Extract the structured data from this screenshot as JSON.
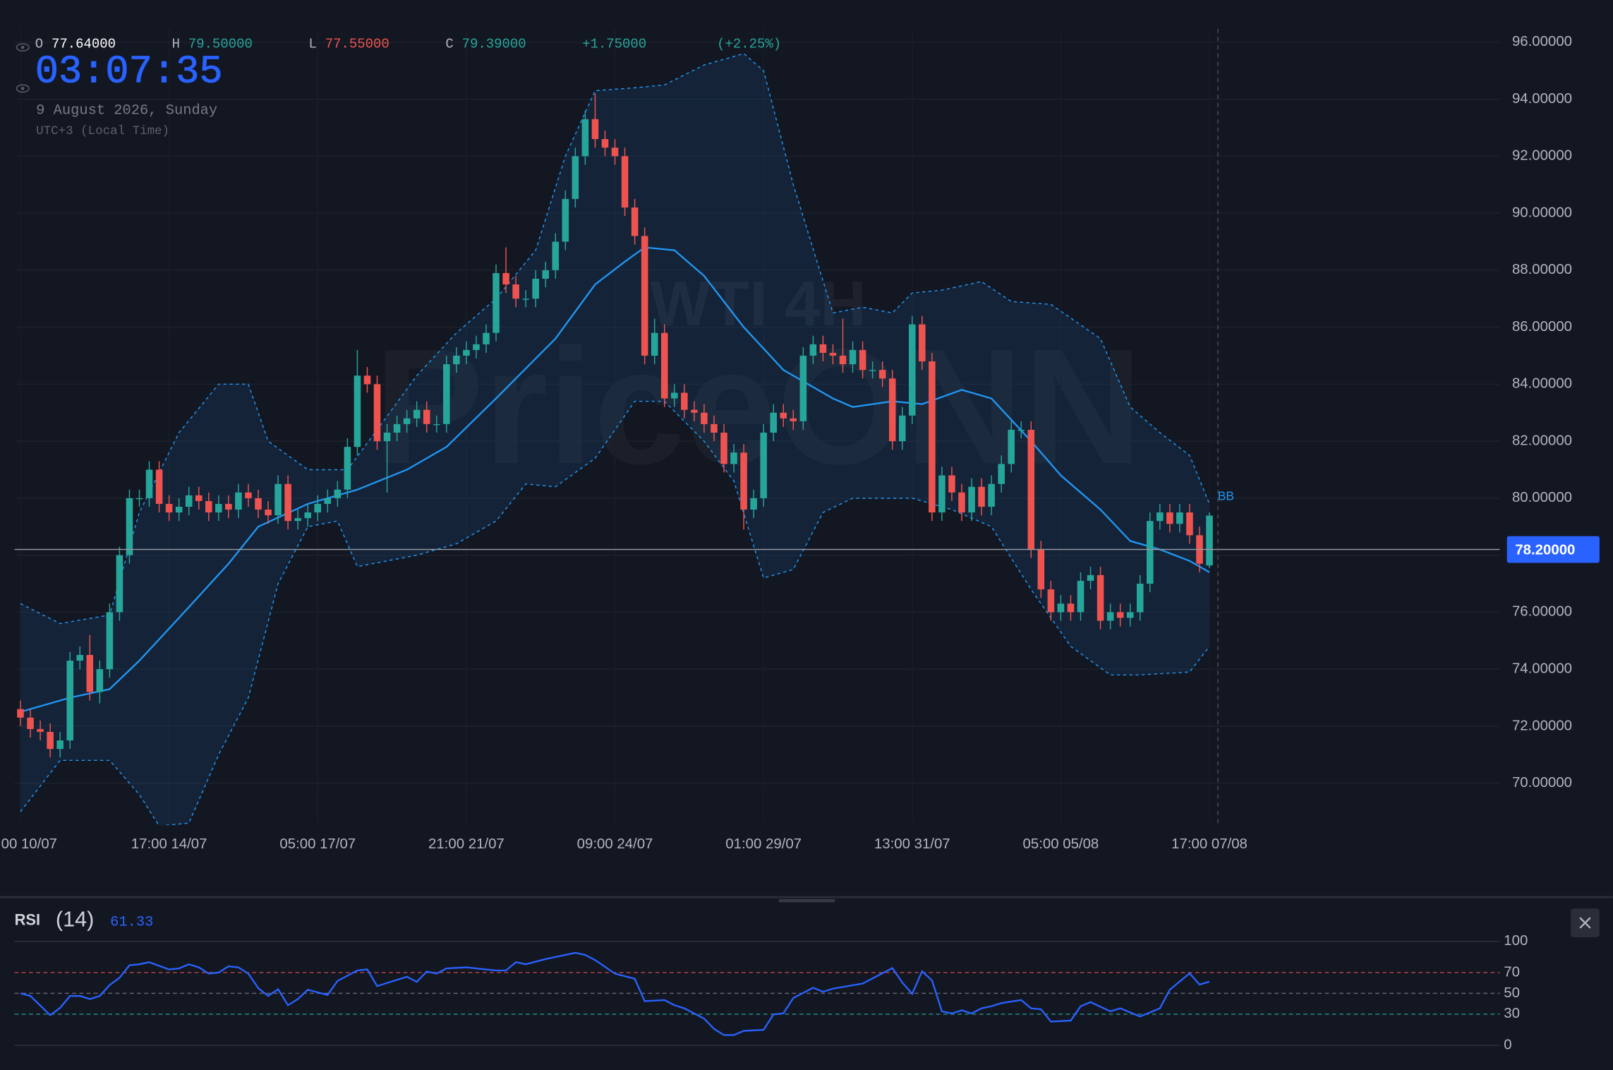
{
  "header": {
    "ohlc": [
      {
        "label": "O",
        "value": "77.64000"
      },
      {
        "label": "H",
        "value": "79.50000"
      },
      {
        "label": "L",
        "value": "77.55000"
      },
      {
        "label": "C",
        "value": "79.39000"
      }
    ],
    "change": "+1.75000",
    "change_pct": "(+2.25%)",
    "clock": "03:07:35",
    "date": "9 August 2026, Sunday",
    "timezone": "UTC+3 (Local Time)"
  },
  "watermark": {
    "symbol": "WTI 4H",
    "brand": "PriceONN"
  },
  "chart_data": [
    {
      "type": "candlestick",
      "up_color": "#26a69a",
      "down_color": "#ef5350",
      "grid": true,
      "open": [
        72.6,
        72.3,
        71.9,
        71.8,
        71.2,
        71.5,
        74.3,
        74.5,
        73.2,
        74.0,
        76.0,
        78.0,
        80.0,
        80.0,
        81.0,
        79.8,
        79.5,
        79.7,
        80.1,
        79.9,
        79.5,
        79.8,
        79.6,
        80.2,
        80.0,
        79.6,
        79.4,
        80.5,
        79.2,
        79.3,
        79.5,
        79.8,
        80.0,
        80.3,
        81.8,
        84.3,
        84.0,
        82.0,
        82.3,
        82.6,
        82.8,
        83.1,
        82.6,
        82.6,
        84.7,
        85.0,
        85.2,
        85.4,
        85.8,
        87.9,
        87.5,
        87.0,
        87.0,
        87.7,
        88.0,
        89.0,
        90.5,
        92.0,
        93.3,
        92.6,
        92.3,
        92.0,
        90.2,
        89.2,
        85.0,
        85.8,
        83.5,
        83.7,
        83.1,
        83.0,
        82.6,
        82.3,
        81.2,
        81.6,
        79.6,
        80.0,
        82.3,
        83.0,
        82.8,
        82.7,
        85.0,
        85.4,
        85.1,
        85.0,
        84.7,
        85.2,
        84.5,
        84.5,
        84.2,
        82.0,
        82.9,
        86.1,
        84.8,
        79.5,
        80.8,
        80.2,
        79.5,
        80.4,
        79.7,
        80.5,
        81.2,
        82.4,
        82.4,
        78.2,
        76.8,
        76.0,
        76.3,
        76.0,
        77.1,
        77.3,
        75.7,
        76.0,
        75.8,
        76.0,
        77.0,
        79.2,
        79.5,
        79.1,
        79.5,
        78.7,
        77.64
      ],
      "high": [
        72.9,
        72.6,
        72.2,
        72.1,
        71.8,
        74.6,
        74.8,
        75.2,
        74.3,
        76.3,
        78.3,
        80.3,
        80.3,
        81.3,
        81.3,
        80.1,
        80.0,
        80.4,
        80.4,
        80.2,
        80.1,
        80.1,
        80.5,
        80.5,
        80.3,
        79.9,
        80.8,
        80.8,
        79.6,
        79.8,
        80.1,
        80.3,
        80.6,
        82.1,
        85.2,
        84.6,
        84.3,
        82.6,
        82.9,
        83.1,
        83.4,
        83.4,
        82.9,
        85.0,
        85.3,
        85.5,
        85.7,
        86.1,
        88.2,
        88.8,
        87.8,
        87.3,
        88.0,
        88.3,
        89.3,
        90.8,
        92.3,
        93.6,
        94.2,
        92.9,
        92.6,
        92.3,
        90.5,
        89.5,
        86.3,
        86.1,
        84.0,
        84.0,
        83.4,
        83.3,
        82.9,
        82.6,
        81.9,
        81.9,
        80.3,
        82.6,
        83.3,
        83.3,
        83.1,
        85.3,
        85.7,
        85.7,
        85.4,
        86.3,
        85.5,
        85.5,
        84.8,
        84.8,
        84.5,
        83.2,
        86.4,
        86.4,
        85.1,
        81.1,
        81.1,
        80.5,
        80.7,
        80.7,
        80.8,
        81.5,
        82.7,
        82.7,
        82.7,
        78.5,
        77.1,
        76.6,
        76.6,
        77.4,
        77.6,
        77.6,
        76.3,
        76.3,
        76.3,
        77.3,
        79.5,
        79.8,
        79.8,
        79.8,
        79.8,
        79.0,
        79.5
      ],
      "low": [
        72.0,
        71.6,
        71.5,
        70.9,
        70.9,
        71.2,
        74.0,
        72.9,
        72.8,
        73.7,
        75.7,
        77.7,
        79.7,
        79.7,
        79.5,
        79.2,
        79.2,
        79.4,
        79.6,
        79.2,
        79.2,
        79.3,
        79.3,
        79.7,
        79.3,
        79.1,
        79.1,
        78.9,
        78.9,
        79.0,
        79.2,
        79.5,
        79.7,
        80.0,
        81.5,
        83.7,
        81.7,
        80.2,
        82.0,
        82.3,
        82.5,
        82.3,
        82.3,
        82.3,
        84.4,
        84.7,
        84.9,
        85.1,
        85.5,
        87.2,
        86.7,
        86.7,
        86.7,
        87.4,
        87.7,
        88.7,
        90.2,
        91.7,
        92.3,
        92.0,
        91.7,
        89.9,
        88.9,
        84.7,
        84.7,
        83.2,
        83.2,
        82.8,
        82.7,
        82.3,
        82.0,
        80.9,
        80.9,
        78.9,
        79.3,
        79.7,
        82.0,
        82.5,
        82.4,
        82.4,
        84.7,
        84.8,
        84.7,
        84.4,
        84.4,
        84.2,
        84.2,
        83.9,
        81.7,
        81.7,
        82.6,
        84.5,
        79.2,
        79.2,
        79.9,
        79.2,
        79.2,
        79.4,
        79.4,
        80.2,
        80.9,
        82.1,
        77.9,
        76.5,
        75.7,
        75.7,
        75.7,
        75.7,
        76.8,
        75.4,
        75.4,
        75.5,
        75.5,
        75.7,
        76.7,
        78.9,
        78.8,
        78.8,
        78.4,
        77.4,
        77.55
      ],
      "close": [
        72.3,
        71.9,
        71.8,
        71.2,
        71.5,
        74.3,
        74.5,
        73.2,
        74.0,
        76.0,
        78.0,
        80.0,
        80.0,
        81.0,
        79.8,
        79.5,
        79.7,
        80.1,
        79.9,
        79.5,
        79.8,
        79.6,
        80.2,
        80.0,
        79.6,
        79.4,
        80.5,
        79.2,
        79.3,
        79.5,
        79.8,
        80.0,
        80.3,
        81.8,
        84.3,
        84.0,
        82.0,
        82.3,
        82.6,
        82.8,
        83.1,
        82.6,
        82.6,
        84.7,
        85.0,
        85.2,
        85.4,
        85.8,
        87.9,
        87.5,
        87.0,
        87.0,
        87.7,
        88.0,
        89.0,
        90.5,
        92.0,
        93.3,
        92.6,
        92.3,
        92.0,
        90.2,
        89.2,
        85.0,
        85.8,
        83.5,
        83.7,
        83.1,
        83.0,
        82.6,
        82.3,
        81.2,
        81.6,
        79.6,
        80.0,
        82.3,
        83.0,
        82.8,
        82.7,
        85.0,
        85.4,
        85.1,
        85.0,
        84.7,
        85.2,
        84.5,
        84.5,
        84.2,
        82.0,
        82.9,
        86.1,
        84.8,
        79.5,
        80.8,
        80.2,
        79.5,
        80.4,
        79.7,
        80.5,
        81.2,
        82.4,
        82.4,
        78.2,
        76.8,
        76.0,
        76.3,
        76.0,
        77.1,
        77.3,
        75.7,
        76.0,
        75.8,
        76.0,
        77.0,
        79.2,
        79.5,
        79.1,
        79.5,
        78.7,
        77.7,
        79.39
      ],
      "xlim": [
        -0.6,
        149.3
      ],
      "xticks": [
        {
          "value": 0,
          "label": "00 10/07"
        },
        {
          "value": 15,
          "label": "17:00 14/07"
        },
        {
          "value": 30,
          "label": "05:00 17/07"
        },
        {
          "value": 45,
          "label": "21:00 21/07"
        },
        {
          "value": 60,
          "label": "09:00 24/07"
        },
        {
          "value": 75,
          "label": "01:00 29/07"
        },
        {
          "value": 90,
          "label": "13:00 31/07"
        },
        {
          "value": 105,
          "label": "05:00 05/08"
        },
        {
          "value": 120,
          "label": "17:00 07/08"
        }
      ],
      "ylim": [
        68.6,
        96.47
      ],
      "yticks": [
        {
          "value": 70,
          "label": "70.00000"
        },
        {
          "value": 72,
          "label": "72.00000"
        },
        {
          "value": 74,
          "label": "74.00000"
        },
        {
          "value": 76,
          "label": "76.00000"
        },
        {
          "value": 78,
          "label": "78.00000"
        },
        {
          "value": 80,
          "label": "80.00000"
        },
        {
          "value": 82,
          "label": "82.00000"
        },
        {
          "value": 84,
          "label": "84.00000"
        },
        {
          "value": 86,
          "label": "86.00000"
        },
        {
          "value": 88,
          "label": "88.00000"
        },
        {
          "value": 90,
          "label": "90.00000"
        },
        {
          "value": 92,
          "label": "92.00000"
        },
        {
          "value": 94,
          "label": "94.00000"
        },
        {
          "value": 96,
          "label": "96.00000"
        }
      ],
      "price_line": {
        "value": 78.2,
        "label": "78.20000",
        "color": "#2962ff"
      },
      "bands": {
        "label": "BB",
        "color": "#2196f3",
        "upper": {
          "x": [
            0,
            4,
            9,
            12,
            16,
            20,
            23,
            25,
            29,
            33,
            36,
            40,
            44,
            48,
            52,
            55,
            58,
            62,
            65,
            69,
            73,
            75,
            78,
            82,
            85,
            88,
            90,
            93,
            97,
            100,
            104,
            109,
            112,
            115,
            118,
            120
          ],
          "values": [
            76.3,
            75.6,
            75.9,
            79.5,
            82.3,
            84,
            84,
            82,
            81,
            81,
            82.4,
            84.3,
            85.8,
            87,
            88.7,
            92,
            94.3,
            94.4,
            94.5,
            95.2,
            95.6,
            95,
            91,
            86.5,
            86.7,
            86.5,
            87.2,
            87.3,
            87.6,
            86.9,
            86.8,
            85.6,
            83.2,
            82.3,
            81.5,
            79.8
          ]
        },
        "middle": {
          "x": [
            0,
            5,
            9,
            12,
            16,
            21,
            24,
            29,
            34,
            39,
            43,
            48,
            54,
            58,
            61,
            63,
            66,
            69,
            73,
            77,
            82,
            84,
            88,
            91,
            95,
            98,
            102,
            105,
            109,
            112,
            115,
            118,
            120
          ],
          "values": [
            72.5,
            73,
            73.3,
            74.3,
            75.8,
            77.7,
            79.0,
            79.8,
            80.3,
            81,
            81.8,
            83.5,
            85.6,
            87.5,
            88.3,
            88.8,
            88.7,
            87.8,
            86,
            84.5,
            83.5,
            83.2,
            83.4,
            83.3,
            83.8,
            83.5,
            82,
            80.8,
            79.6,
            78.5,
            78.2,
            77.8,
            77.4
          ]
        },
        "lower": {
          "x": [
            0,
            4,
            9,
            12,
            14,
            17,
            20,
            23,
            26,
            29,
            32,
            34,
            40,
            44,
            48,
            51,
            54,
            58,
            62,
            65,
            69,
            72,
            75,
            78,
            81,
            84,
            87,
            90,
            94,
            98,
            102,
            106,
            110,
            113,
            118,
            120
          ],
          "values": [
            69,
            70.8,
            70.8,
            69.6,
            68.5,
            68.6,
            71,
            73,
            77,
            79,
            79.2,
            77.6,
            78,
            78.4,
            79.2,
            80.5,
            80.4,
            81.4,
            83.4,
            83.4,
            82,
            80.6,
            77.2,
            77.5,
            79.5,
            80,
            80,
            80,
            79.6,
            79,
            76.8,
            74.8,
            73.8,
            73.8,
            73.9,
            74.8
          ]
        }
      }
    },
    {
      "type": "line",
      "title": "RSI",
      "subtitle": "(14)",
      "value_label": "61.33",
      "color": "#2962ff",
      "x": [
        0,
        1,
        3,
        4,
        5,
        6,
        7,
        8,
        9,
        10,
        11,
        12,
        13,
        15,
        16,
        17,
        18,
        19,
        20,
        21,
        22,
        23,
        24,
        25,
        26,
        27,
        28,
        29,
        31,
        32,
        34,
        35,
        36,
        37,
        39,
        40,
        41,
        42,
        43,
        45,
        47,
        48,
        49,
        50,
        51,
        53,
        54,
        56,
        57,
        58,
        60,
        62,
        63,
        65,
        66,
        67,
        69,
        70,
        71,
        72,
        73,
        75,
        76,
        77,
        78,
        80,
        81,
        82,
        85,
        86,
        88,
        89,
        90,
        91,
        92,
        93,
        94,
        95,
        96,
        97,
        98,
        99,
        101,
        102,
        103,
        104,
        106,
        107,
        108,
        110,
        111,
        113,
        115,
        116,
        118,
        119,
        120
      ],
      "values": [
        50,
        47.5,
        29,
        36,
        47.5,
        47.5,
        44.5,
        47.5,
        58,
        65,
        77,
        78,
        80,
        73,
        74,
        78,
        75,
        69,
        70,
        76,
        75,
        69,
        55,
        47.5,
        54,
        38.6,
        44.5,
        53.5,
        48.5,
        62,
        72,
        73,
        57,
        60,
        66,
        61,
        71,
        69,
        74,
        75,
        73,
        72,
        72,
        80,
        78,
        83,
        85,
        89,
        87,
        82,
        69,
        64,
        42.5,
        43.5,
        38.6,
        35.6,
        25.7,
        15.8,
        9.9,
        9.9,
        13.9,
        14.9,
        29.7,
        30.7,
        45.5,
        55.4,
        51.5,
        54.5,
        59.4,
        64.4,
        74.3,
        60.4,
        49.5,
        71.3,
        62.4,
        32.7,
        30.7,
        33.7,
        30.7,
        35.6,
        37.6,
        40.6,
        43.6,
        35.6,
        34.7,
        22.8,
        23.8,
        37.6,
        41.6,
        32.7,
        35.6,
        27.7,
        35.6,
        53.5,
        69.3,
        58.4,
        61.33
      ],
      "xlim": [
        -0.6,
        149.3
      ],
      "ylim": [
        0,
        100
      ],
      "yticks": [
        0,
        30,
        50,
        70,
        100
      ],
      "tick_colors": [
        "#363a45",
        "#26a69a",
        "#787b86",
        "#ef5350",
        "#363a45"
      ],
      "tick_styles": [
        "solid",
        "dashed",
        "dashed",
        "dashed",
        "solid"
      ]
    }
  ]
}
